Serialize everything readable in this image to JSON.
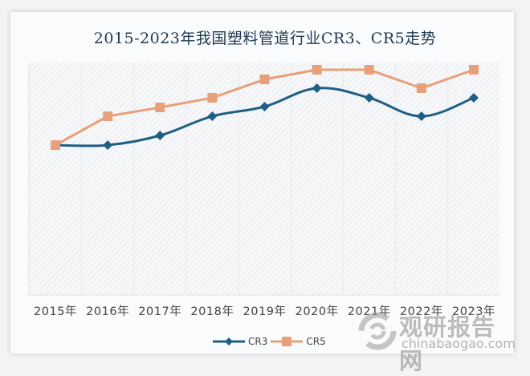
{
  "chart_data": {
    "type": "line",
    "title": "2015-2023年我国塑料管道行业CR3、CR5走势",
    "xlabel": "",
    "ylabel": "",
    "categories": [
      "2015年",
      "2016年",
      "2017年",
      "2018年",
      "2019年",
      "2020年",
      "2021年",
      "2022年",
      "2023年"
    ],
    "series": [
      {
        "name": "CR3",
        "color": "#1f5f85",
        "marker": "diamond",
        "smooth": true,
        "values": [
          187,
          187,
          199,
          223,
          235,
          258,
          246,
          223,
          246
        ]
      },
      {
        "name": "CR5",
        "color": "#e8a07a",
        "marker": "square",
        "smooth": false,
        "values": [
          187,
          223,
          234,
          246,
          269,
          281,
          281,
          258,
          281
        ]
      }
    ],
    "value_note": "No y-axis shown; values are relative heights (estimated) within plot",
    "ylim": [
      0,
      290
    ],
    "grid": "vertical category bands, hatched background",
    "legend_position": "bottom-center"
  },
  "legend": {
    "cr3": "CR3",
    "cr5": "CR5"
  },
  "watermark": {
    "name_cn": "观研报告网",
    "url": "chinabaogao.com"
  }
}
